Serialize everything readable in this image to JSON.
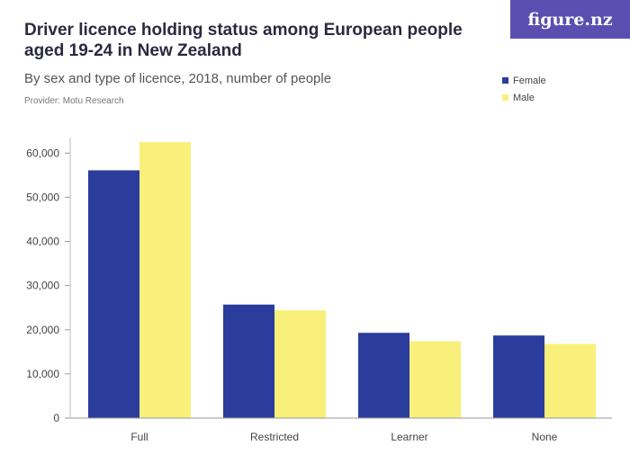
{
  "header": {
    "title": "Driver licence holding status among European people aged 19-24 in New Zealand",
    "subtitle": "By sex and type of licence, 2018, number of people",
    "provider": "Provider: Motu Research",
    "logo": "figure.nz"
  },
  "colors": {
    "Female": "#2a3d9c",
    "Male": "#f9f07c",
    "logo_bg": "#5a4fb0"
  },
  "chart_data": {
    "type": "bar",
    "categories": [
      "Full",
      "Restricted",
      "Learner",
      "None"
    ],
    "series": [
      {
        "name": "Female",
        "values": [
          56100,
          25700,
          19300,
          18700
        ]
      },
      {
        "name": "Male",
        "values": [
          62500,
          24400,
          17400,
          16800
        ]
      }
    ],
    "ylim": [
      0,
      62500
    ],
    "yticks": [
      0,
      10000,
      20000,
      30000,
      40000,
      50000,
      60000
    ],
    "ytick_labels": [
      "0",
      "10,000",
      "20,000",
      "30,000",
      "40,000",
      "50,000",
      "60,000"
    ],
    "legend_position": "top-right",
    "grid": false
  }
}
